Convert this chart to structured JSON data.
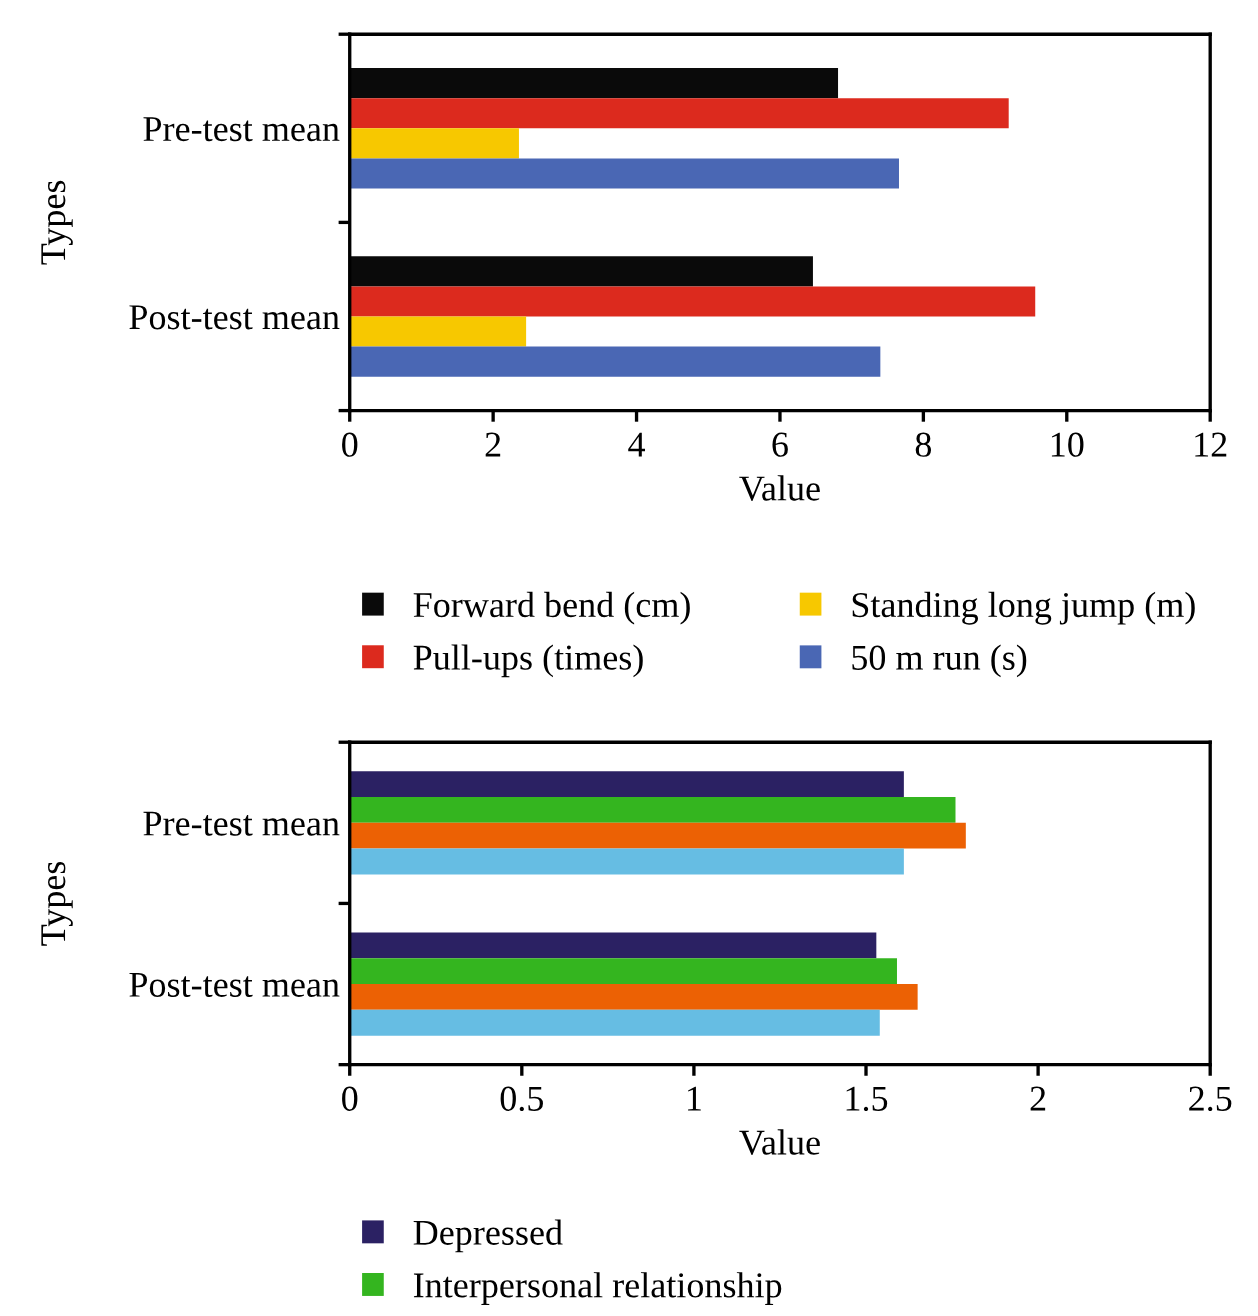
{
  "chart_data": [
    {
      "type": "bar",
      "orientation": "horizontal",
      "xlabel": "Value",
      "ylabel": "Types",
      "categories": [
        "Pre-test mean",
        "Post-test mean"
      ],
      "series": [
        {
          "name": "Forward bend (cm)",
          "color": "#0a0a0a",
          "values": [
            6.81,
            6.46
          ]
        },
        {
          "name": "Pull-ups (times)",
          "color": "#dc2a1e",
          "values": [
            9.19,
            9.56
          ]
        },
        {
          "name": "Standing long jump (m)",
          "color": "#f7c800",
          "values": [
            2.36,
            2.46
          ]
        },
        {
          "name": "50 m run (s)",
          "color": "#4a67b4",
          "values": [
            7.66,
            7.4
          ]
        }
      ],
      "xlim": [
        0,
        12
      ],
      "xticks": [
        0,
        2,
        4,
        6,
        8,
        10,
        12
      ],
      "grid": false,
      "legend": "bottom"
    },
    {
      "type": "bar",
      "orientation": "horizontal",
      "xlabel": "Value",
      "ylabel": "Types",
      "categories": [
        "Pre-test mean",
        "Post-test mean"
      ],
      "series": [
        {
          "name": "Depressed",
          "color": "#2b2163",
          "values": [
            1.61,
            1.53
          ]
        },
        {
          "name": "Interpersonal relationship",
          "color": "#34b51f",
          "values": [
            1.76,
            1.59
          ]
        },
        {
          "color": "#ec6104",
          "values": [
            1.79,
            1.65
          ]
        },
        {
          "color": "#66bde3",
          "values": [
            1.61,
            1.54
          ]
        }
      ],
      "xlim": [
        0,
        2.5
      ],
      "xticks": [
        0,
        {
          "value": 0.5,
          "label": "0.5"
        },
        1,
        {
          "value": 1.5,
          "label": "1.5"
        },
        2,
        {
          "value": 2.5,
          "label": "2.5"
        }
      ],
      "grid": false,
      "legend": "bottom"
    }
  ]
}
